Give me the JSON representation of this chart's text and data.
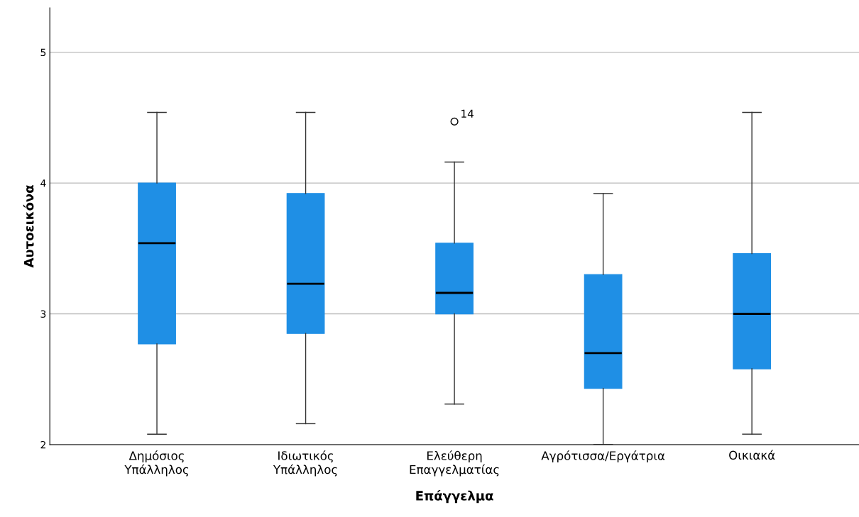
{
  "chart_data": {
    "type": "box",
    "xlabel": "Επάγγελμα",
    "ylabel": "Αυτοεικόνα",
    "categories": [
      "Δημόσιος\nΥπάλληλος",
      "Ιδιωτικός\nΥπάλληλος",
      "Ελεύθερη\nΕπαγγελματίας",
      "Αγρότισσα/Εργάτρια",
      "Οικιακά"
    ],
    "boxes": [
      {
        "low": 2.08,
        "q1": 2.77,
        "median": 3.54,
        "q3": 4.0,
        "high": 4.54
      },
      {
        "low": 2.16,
        "q1": 2.85,
        "median": 3.23,
        "q3": 3.92,
        "high": 4.54
      },
      {
        "low": 2.31,
        "q1": 3.0,
        "median": 3.16,
        "q3": 3.54,
        "high": 4.16,
        "outliers": [
          4.47
        ]
      },
      {
        "low": 2.0,
        "q1": 2.43,
        "median": 2.7,
        "q3": 3.3,
        "high": 3.92
      },
      {
        "low": 2.08,
        "q1": 2.58,
        "median": 3.0,
        "q3": 3.46,
        "high": 4.54
      }
    ],
    "color": "#1f8fe5",
    "annotations": [
      "14"
    ],
    "ylim": [
      2,
      5.34
    ],
    "yticks": [
      2,
      3,
      4,
      5
    ],
    "grid": "y"
  }
}
